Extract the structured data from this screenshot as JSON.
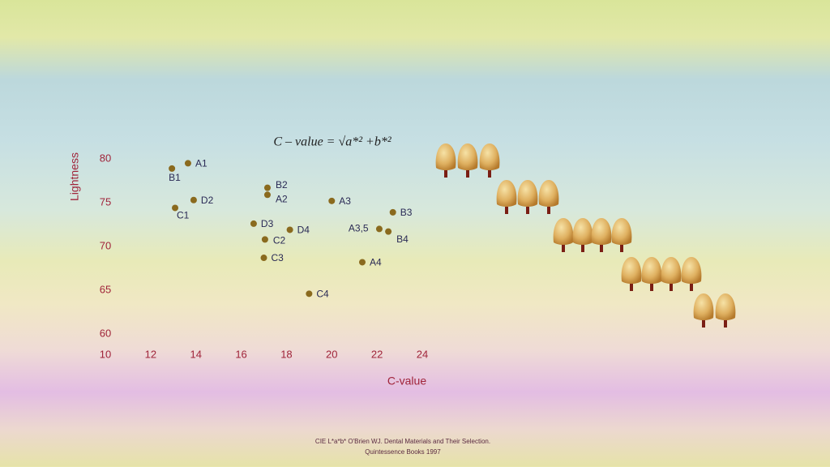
{
  "chart_data": {
    "type": "scatter",
    "formula": "C – value = √a*² +b*²",
    "y_label": "Lightness",
    "x_label": "C-value",
    "x": [
      13.65,
      12.94,
      13.9,
      13.08,
      17.16,
      17.16,
      20.0,
      22.7,
      16.55,
      18.15,
      22.1,
      22.5,
      17.05,
      17.0,
      21.35,
      19.0
    ],
    "values": [
      79.5,
      78.9,
      75.3,
      74.4,
      76.7,
      75.9,
      75.2,
      73.9,
      72.6,
      71.9,
      72.0,
      71.7,
      70.8,
      68.7,
      68.2,
      64.6
    ],
    "point_labels": [
      "A1",
      "B1",
      "D2",
      "C1",
      "B2",
      "A2",
      "A3",
      "B3",
      "D3",
      "D4",
      "A3,5",
      "B4",
      "C2",
      "C3",
      "A4",
      "C4"
    ],
    "color": "#8a6a1e",
    "xlim": [
      10,
      24
    ],
    "xticks": [
      10,
      12,
      14,
      16,
      18,
      20,
      22,
      24
    ],
    "ylim": [
      60,
      80
    ],
    "yticks": [
      60,
      65,
      70,
      75,
      80
    ],
    "grid": false,
    "source_line1": "CIE L*a*b* O'Brien WJ. Dental Materials and Their Selection.",
    "source_line2": "Quintessence Books 1997"
  }
}
